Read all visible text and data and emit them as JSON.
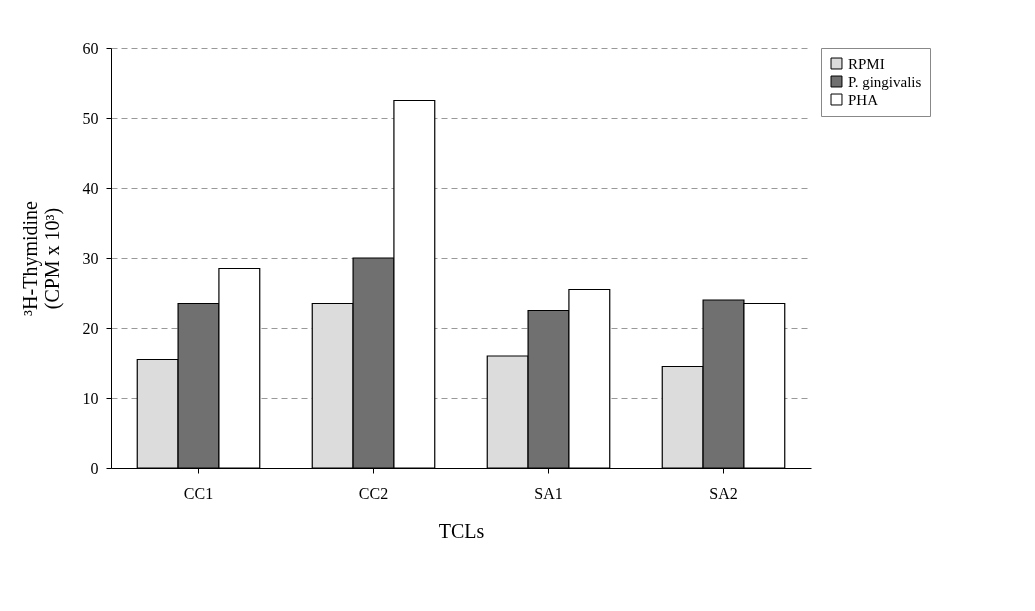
{
  "chart_data": {
    "type": "bar",
    "xlabel": "TCLs",
    "ylabel": "³H-Thymidine (CPM x 10³)",
    "categories": [
      "CC1",
      "CC2",
      "SA1",
      "SA2"
    ],
    "series": [
      {
        "name": "RPMI",
        "color": "#dcdcdc",
        "values": [
          15.5,
          23.5,
          16,
          14.5
        ]
      },
      {
        "name": "P. gingivalis",
        "color": "#707070",
        "values": [
          23.5,
          30,
          22.5,
          24
        ]
      },
      {
        "name": "PHA",
        "color": "#ffffff",
        "values": [
          28.5,
          52.5,
          25.5,
          23.5
        ]
      }
    ],
    "ylim": [
      0,
      60
    ],
    "yticks": [
      0,
      10,
      20,
      30,
      40,
      50,
      60
    ],
    "grid": "y",
    "legend": "top right"
  }
}
